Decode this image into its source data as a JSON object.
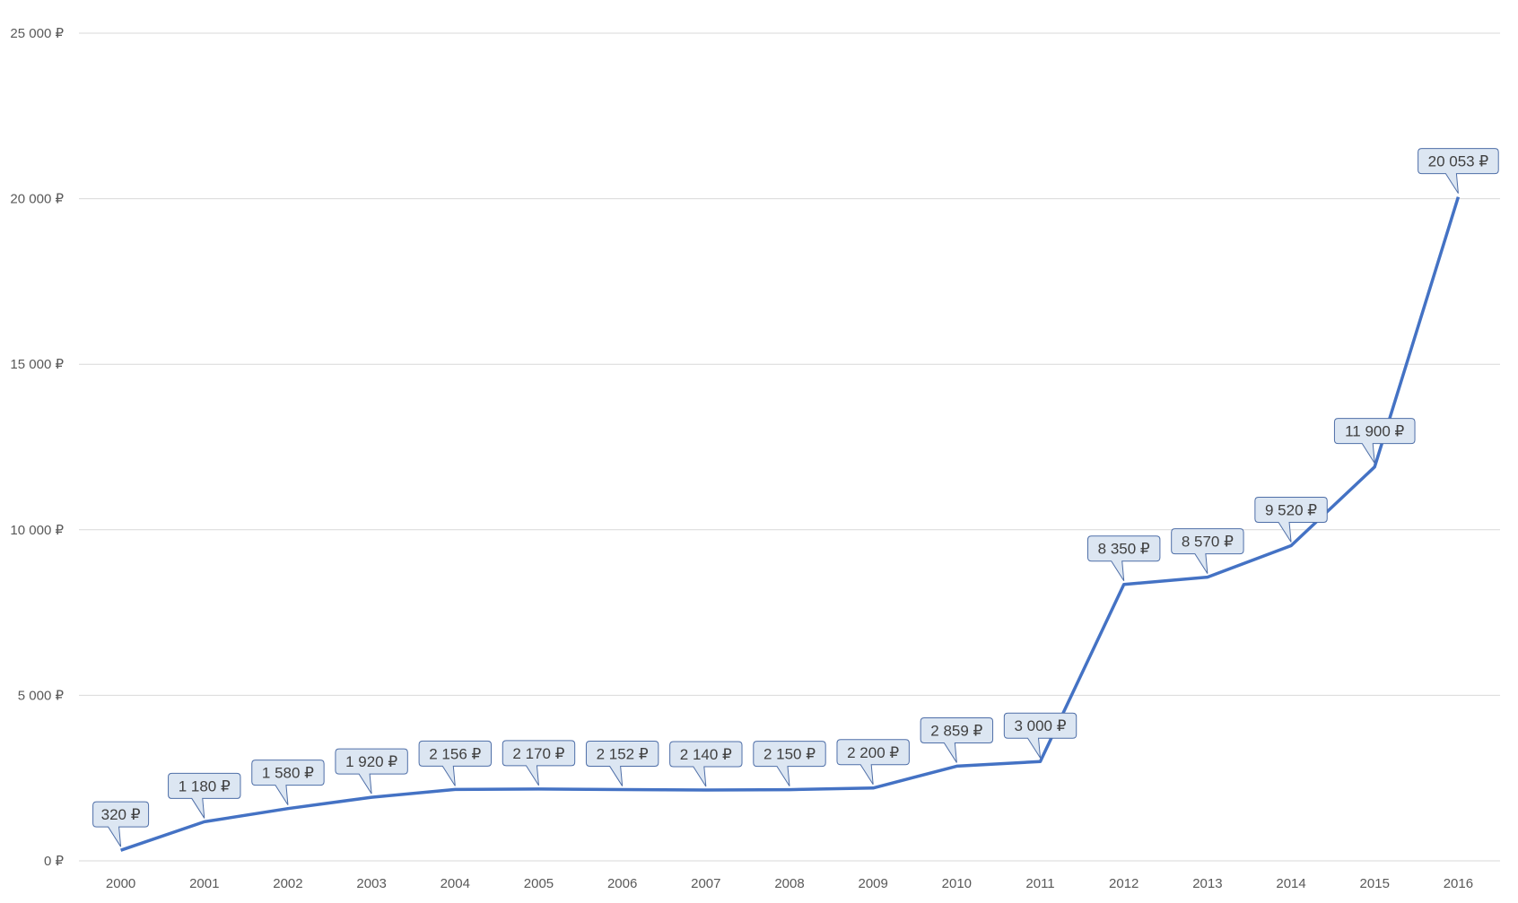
{
  "chart_data": {
    "type": "line",
    "title": "",
    "xlabel": "",
    "ylabel": "",
    "categories": [
      "2000",
      "2001",
      "2002",
      "2003",
      "2004",
      "2005",
      "2006",
      "2007",
      "2008",
      "2009",
      "2010",
      "2011",
      "2012",
      "2013",
      "2014",
      "2015",
      "2016"
    ],
    "series": [
      {
        "values": [
          320,
          1180,
          1580,
          1920,
          2156,
          2170,
          2152,
          2140,
          2150,
          2200,
          2859,
          3000,
          8350,
          8570,
          9520,
          11900,
          20053
        ],
        "color": "#4472c4"
      }
    ],
    "data_labels": [
      "320 ₽",
      "1 180 ₽",
      "1 580 ₽",
      "1 920 ₽",
      "2 156 ₽",
      "2 170 ₽",
      "2 152 ₽",
      "2 140 ₽",
      "2 150 ₽",
      "2 200 ₽",
      "2 859 ₽",
      "3 000 ₽",
      "8 350 ₽",
      "8 570 ₽",
      "9 520 ₽",
      "11 900 ₽",
      "20 053 ₽"
    ],
    "ylim": [
      0,
      25000
    ],
    "yticks": [
      0,
      5000,
      10000,
      15000,
      20000,
      25000
    ],
    "ytick_labels": [
      "0 ₽",
      "5 000 ₽",
      "10 000 ₽",
      "15 000 ₽",
      "20 000 ₽",
      "25 000 ₽"
    ],
    "grid": true,
    "legend": "none",
    "colors": {
      "line": "#4472c4",
      "grid": "#d9d9d9",
      "label_fill": "#dce6f2",
      "label_border": "#4f6fa8"
    }
  }
}
